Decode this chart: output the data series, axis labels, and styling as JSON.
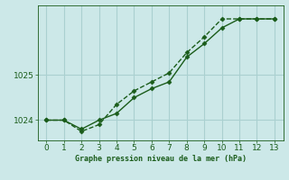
{
  "title": "Graphe pression niveau de la mer (hPa)",
  "background_color": "#cce8e8",
  "grid_color": "#aad0d0",
  "line_color": "#1a5c1a",
  "xlim": [
    -0.5,
    13.5
  ],
  "ylim": [
    1023.55,
    1026.55
  ],
  "yticks": [
    1024,
    1025
  ],
  "xticks": [
    0,
    1,
    2,
    3,
    4,
    5,
    6,
    7,
    8,
    9,
    10,
    11,
    12,
    13
  ],
  "line1_x": [
    0,
    1,
    2,
    3,
    4,
    5,
    6,
    7,
    8,
    9,
    10,
    11,
    12,
    13
  ],
  "line1_y": [
    1024.0,
    1024.0,
    1023.75,
    1023.9,
    1024.35,
    1024.65,
    1024.85,
    1025.05,
    1025.5,
    1025.85,
    1026.25,
    1026.25,
    1026.25,
    1026.25
  ],
  "line2_x": [
    0,
    1,
    2,
    3,
    4,
    5,
    6,
    7,
    8,
    9,
    10,
    11,
    12,
    13
  ],
  "line2_y": [
    1024.0,
    1024.0,
    1023.8,
    1024.0,
    1024.15,
    1024.5,
    1024.7,
    1024.85,
    1025.4,
    1025.7,
    1026.05,
    1026.25,
    1026.25,
    1026.25
  ],
  "marker": "D",
  "markersize": 2.5,
  "linewidth": 1.0,
  "tick_fontsize": 6.5
}
